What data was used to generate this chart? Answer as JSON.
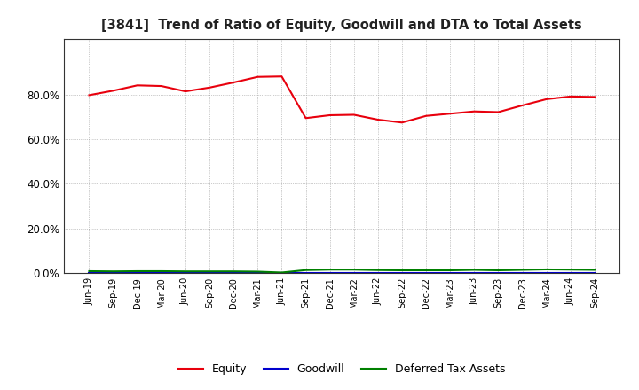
{
  "title": "[3841]  Trend of Ratio of Equity, Goodwill and DTA to Total Assets",
  "x_labels": [
    "Jun-19",
    "Sep-19",
    "Dec-19",
    "Mar-20",
    "Jun-20",
    "Sep-20",
    "Dec-20",
    "Mar-21",
    "Jun-21",
    "Sep-21",
    "Dec-21",
    "Mar-22",
    "Jun-22",
    "Sep-22",
    "Dec-22",
    "Mar-23",
    "Jun-23",
    "Sep-23",
    "Dec-23",
    "Mar-24",
    "Jun-24",
    "Sep-24"
  ],
  "equity": [
    79.8,
    81.8,
    84.2,
    83.9,
    81.5,
    83.2,
    85.5,
    88.0,
    88.2,
    69.5,
    70.8,
    71.0,
    68.8,
    67.5,
    70.5,
    71.5,
    72.5,
    72.2,
    75.2,
    78.0,
    79.2,
    79.0
  ],
  "goodwill": [
    0.0,
    0.0,
    0.0,
    0.0,
    0.0,
    0.0,
    0.0,
    0.0,
    0.0,
    0.0,
    0.0,
    0.0,
    0.0,
    0.0,
    0.0,
    0.0,
    0.0,
    0.0,
    0.0,
    0.0,
    0.0,
    0.0
  ],
  "dta": [
    0.8,
    0.7,
    0.8,
    0.8,
    0.7,
    0.7,
    0.7,
    0.6,
    0.2,
    1.3,
    1.5,
    1.5,
    1.3,
    1.2,
    1.2,
    1.2,
    1.4,
    1.2,
    1.4,
    1.6,
    1.5,
    1.4
  ],
  "equity_color": "#e8000d",
  "goodwill_color": "#0000cd",
  "dta_color": "#008000",
  "bg_color": "#ffffff",
  "plot_bg_color": "#ffffff",
  "grid_color": "#999999",
  "ylim_min": 0,
  "ylim_max": 100,
  "yticks": [
    0,
    20,
    40,
    60,
    80
  ]
}
